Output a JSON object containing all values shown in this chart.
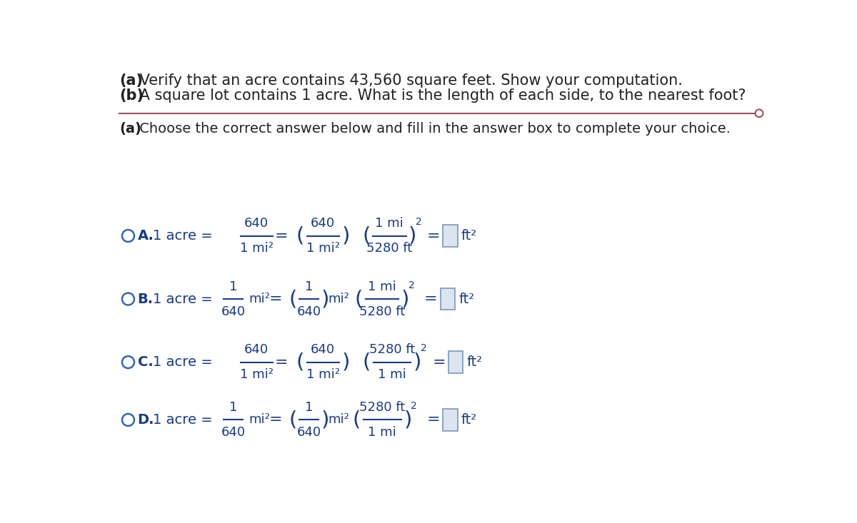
{
  "background_color": "#ffffff",
  "title_line1_bold": "(a)",
  "title_line1_rest": " Verify that an acre contains 43,560 square feet. Show your computation.",
  "title_line2_bold": "(b)",
  "title_line2_rest": " A square lot contains 1 acre. What is the length of each side, to the nearest foot?",
  "subtitle_bold": "(a)",
  "subtitle_rest": " Choose the correct answer below and fill in the answer box to complete your choice.",
  "separator_color": "#a05060",
  "text_color": "#222222",
  "blue_color": "#1a3a8a",
  "circle_color": "#3366bb",
  "box_fill": "#dce4f0",
  "box_edge": "#7799bb"
}
